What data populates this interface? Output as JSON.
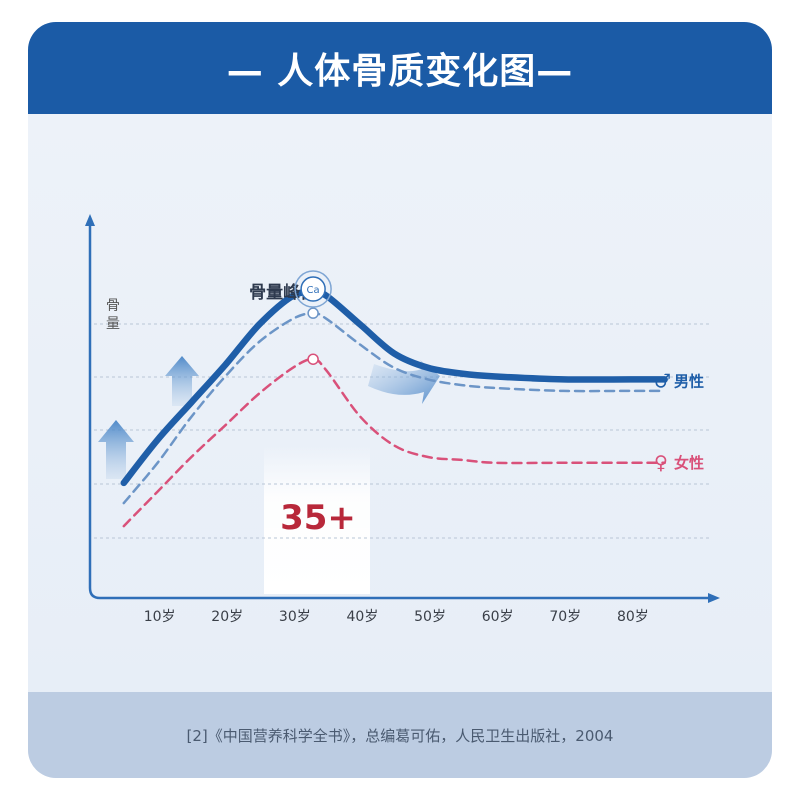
{
  "header": {
    "title": "— 人体骨质变化图—"
  },
  "chart_data": {
    "type": "line",
    "ylabel": "骨量",
    "categories": [
      "10岁",
      "20岁",
      "30岁",
      "40岁",
      "50岁",
      "60岁",
      "70岁",
      "80岁"
    ],
    "peak_label": "骨量峰值",
    "peak_marker": "Ca",
    "highlight_label": "35+",
    "series": [
      {
        "name": "男性",
        "symbol": "♂",
        "color": "#1f5ea8",
        "x": [
          5,
          10,
          15,
          20,
          25,
          30,
          33,
          35,
          40,
          45,
          50,
          55,
          60,
          70,
          80,
          85
        ],
        "values": [
          15,
          30,
          43,
          56,
          70,
          80,
          81,
          80,
          70,
          60,
          55,
          53,
          52,
          51,
          51,
          51
        ]
      },
      {
        "name": "男性",
        "color": "#6c95c7",
        "x": [
          5,
          10,
          15,
          20,
          25,
          30,
          33,
          35,
          40,
          45,
          50,
          55,
          60,
          70,
          80,
          85
        ],
        "values": [
          8,
          22,
          38,
          52,
          64,
          72,
          74,
          72,
          63,
          55,
          51,
          49,
          48,
          47,
          47,
          47
        ]
      },
      {
        "name": "女性",
        "symbol": "♀",
        "color": "#d9517a",
        "x": [
          5,
          10,
          15,
          20,
          25,
          30,
          33,
          35,
          40,
          45,
          50,
          55,
          60,
          70,
          80,
          85
        ],
        "values": [
          0,
          12,
          24,
          35,
          46,
          55,
          58,
          54,
          38,
          28,
          24,
          23,
          22,
          22,
          22,
          22
        ]
      }
    ],
    "legend": [
      {
        "symbol": "♂",
        "label": "男性",
        "color": "#1f5ea8"
      },
      {
        "symbol": "♀",
        "label": "女性",
        "color": "#d9517a"
      }
    ],
    "grid": true
  },
  "footer": {
    "source": "[2]《中国营养科学全书》，总编葛可佑，人民卫生出版社，2004"
  }
}
